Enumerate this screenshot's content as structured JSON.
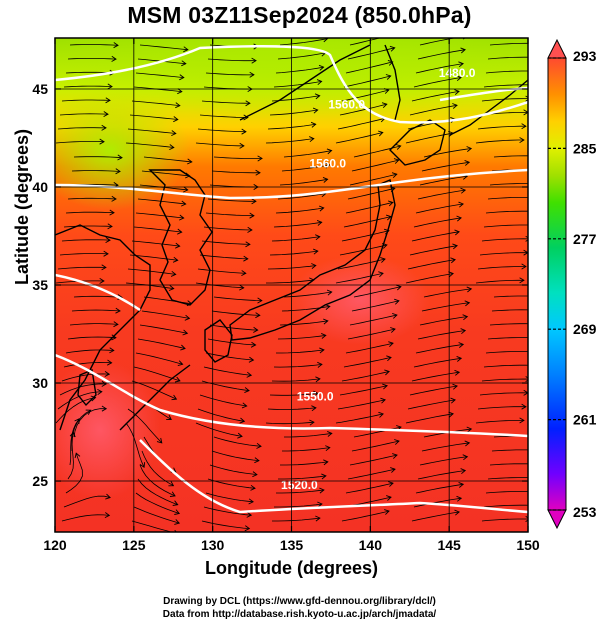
{
  "title": "MSM 03Z11Sep2024 (850.0hPa)",
  "xlabel": "Longitude (degrees)",
  "ylabel": "Latitude  (degrees)",
  "credits": {
    "line1": "Drawing by DCL (https://www.gfd-dennou.org/library/dcl/)",
    "line2": "Data from http://database.rish.kyoto-u.ac.jp/arch/jmadata/"
  },
  "chart_data": {
    "type": "heatmap",
    "xlim": [
      120,
      150
    ],
    "ylim": [
      22.4,
      47.6
    ],
    "xticks": [
      120,
      125,
      130,
      135,
      140,
      145,
      150
    ],
    "yticks": [
      25,
      30,
      35,
      40,
      45
    ],
    "colorbar": {
      "min": 253,
      "max": 293,
      "ticks": [
        293,
        285,
        277,
        269,
        261,
        253
      ],
      "colors": [
        "#e000c0",
        "#7000ff",
        "#0020ff",
        "#0080ff",
        "#00c0ff",
        "#00e0c0",
        "#00d060",
        "#40e000",
        "#a0e000",
        "#e0f000",
        "#ffd000",
        "#ff9000",
        "#ff5010",
        "#f03030",
        "#ff5050"
      ]
    },
    "contours": [
      {
        "label": "1560.0",
        "lon": 137.3,
        "lat": 41.0
      },
      {
        "label": "1560.0",
        "lon": 138.5,
        "lat": 44.0
      },
      {
        "label": "1480.0",
        "lon": 145.5,
        "lat": 45.6
      },
      {
        "label": "1550.0",
        "lon": 136.5,
        "lat": 29.1
      },
      {
        "label": "1520.0",
        "lon": 135.5,
        "lat": 24.6
      }
    ],
    "grid": true
  },
  "colors": {
    "frame": "#000000",
    "contour": "#ffffff",
    "streamline": "#000000"
  }
}
